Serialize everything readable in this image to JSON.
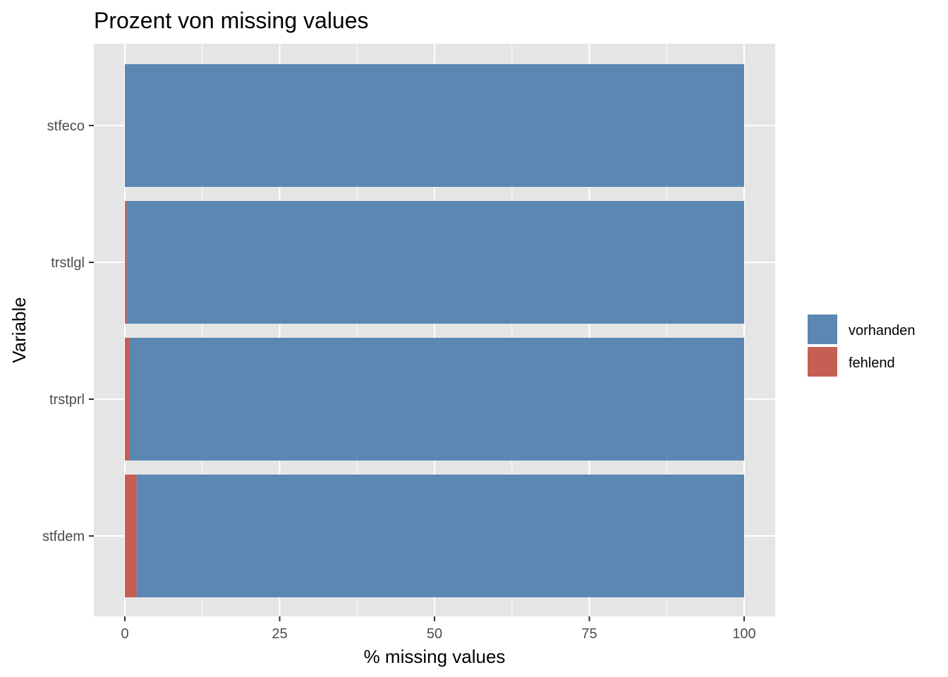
{
  "chart_data": {
    "type": "bar",
    "orientation": "horizontal",
    "stacked": true,
    "title": "Prozent von missing values",
    "xlabel": "% missing values",
    "ylabel": "Variable",
    "xlim": [
      0,
      100
    ],
    "x_ticks": [
      0,
      25,
      50,
      75,
      100
    ],
    "x_tick_labels": [
      "0",
      "25",
      "50",
      "75",
      "100"
    ],
    "categories": [
      "stfeco",
      "trstlgl",
      "trstprl",
      "stfdem"
    ],
    "series": [
      {
        "name": "fehlend",
        "color": "#c65f53",
        "values": [
          0.0,
          0.3,
          0.8,
          1.9
        ]
      },
      {
        "name": "vorhanden",
        "color": "#5b87b2",
        "values": [
          100.0,
          99.7,
          99.2,
          98.1
        ]
      }
    ],
    "legend": {
      "position": "right",
      "entries": [
        {
          "label": "vorhanden",
          "color": "#5b87b2"
        },
        {
          "label": "fehlend",
          "color": "#c65f53"
        }
      ]
    },
    "grid": true,
    "panel_background": "#e5e5e5",
    "grid_color": "#ffffff"
  }
}
